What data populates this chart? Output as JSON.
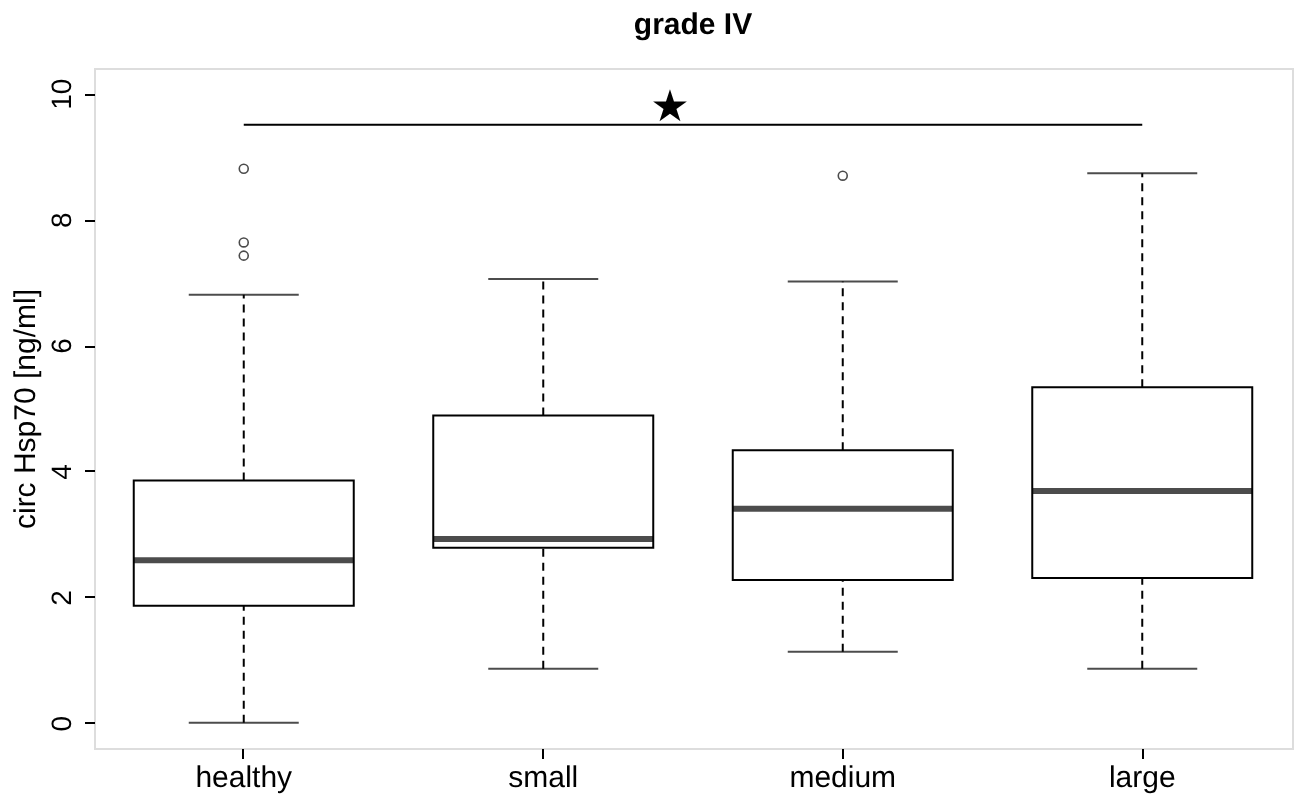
{
  "chart_data": {
    "type": "box",
    "title": "grade IV",
    "ylabel": "circ Hsp70 [ng/ml]",
    "categories": [
      "healthy",
      "small",
      "medium",
      "large"
    ],
    "boxes": [
      {
        "low": 0,
        "q1": 1.86,
        "median": 2.58,
        "q3": 3.85,
        "high": 6.8,
        "outliers": [
          8.8,
          7.63,
          7.42
        ]
      },
      {
        "low": 0.86,
        "q1": 2.78,
        "median": 2.92,
        "q3": 4.88,
        "high": 7.05
      },
      {
        "low": 1.13,
        "q1": 2.27,
        "median": 3.4,
        "q3": 4.33,
        "high": 7.01,
        "outliers": [
          8.69
        ]
      },
      {
        "low": 0.86,
        "q1": 2.3,
        "median": 3.68,
        "q3": 5.33,
        "high": 8.73
      }
    ],
    "ylim": [
      -0.4,
      10.4
    ],
    "yticks": [
      0,
      2,
      4,
      6,
      8,
      10
    ],
    "grid": false,
    "ref_lines": [
      {
        "axis": "y",
        "value": 9.5,
        "label": "★"
      }
    ]
  }
}
